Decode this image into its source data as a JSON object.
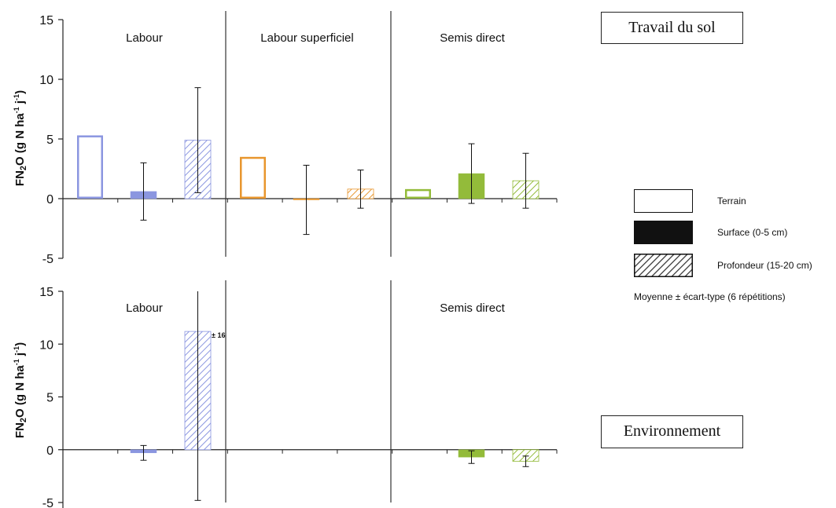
{
  "chart_data": [
    {
      "type": "bar",
      "title": "",
      "ylabel": "FN2O (g N ha-1 j-1)",
      "ylim": [
        -5,
        15
      ],
      "yticks": [
        15,
        10,
        5,
        0,
        -5
      ],
      "groups": [
        "Labour",
        "Labour superficiel",
        "Semis direct"
      ],
      "group_colors": [
        "#8b96e0",
        "#e8962e",
        "#93bb3a"
      ],
      "series": [
        {
          "name": "Terrain",
          "values": [
            5.3,
            3.5,
            0.8
          ],
          "err": [
            null,
            null,
            null
          ]
        },
        {
          "name": "Surface (0-5 cm)",
          "values": [
            0.6,
            -0.1,
            2.1
          ],
          "err": [
            2.4,
            2.9,
            2.5
          ]
        },
        {
          "name": "Profondeur (15-20 cm)",
          "values": [
            4.9,
            0.8,
            1.5
          ],
          "err": [
            4.4,
            1.6,
            2.3
          ]
        }
      ]
    },
    {
      "type": "bar",
      "title": "",
      "ylabel": "FN2O (g N ha-1 j-1)",
      "ylim": [
        -5,
        15
      ],
      "yticks": [
        15,
        10,
        5,
        0,
        -5
      ],
      "groups": [
        "Labour",
        "",
        "Semis direct"
      ],
      "group_colors": [
        "#8b96e0",
        "#e8962e",
        "#93bb3a"
      ],
      "series": [
        {
          "name": "Terrain",
          "values": [
            null,
            null,
            null
          ],
          "err": [
            null,
            null,
            null
          ]
        },
        {
          "name": "Surface (0-5 cm)",
          "values": [
            -0.3,
            null,
            -0.7
          ],
          "err": [
            0.7,
            null,
            0.6
          ]
        },
        {
          "name": "Profondeur (15-20 cm)",
          "values": [
            11.2,
            null,
            -1.1
          ],
          "err": [
            16,
            null,
            0.5
          ]
        }
      ],
      "annotations": [
        {
          "text": "± 16"
        }
      ]
    }
  ],
  "boxes": {
    "travail": "Travail du sol",
    "environnement": "Environnement"
  },
  "legend": {
    "items": [
      {
        "label": "Terrain",
        "style": "empty"
      },
      {
        "label": "Surface (0-5 cm)",
        "style": "solid"
      },
      {
        "label": "Profondeur (15-20 cm)",
        "style": "hatched"
      }
    ],
    "note": "Moyenne ± écart-type (6 répétitions)"
  }
}
